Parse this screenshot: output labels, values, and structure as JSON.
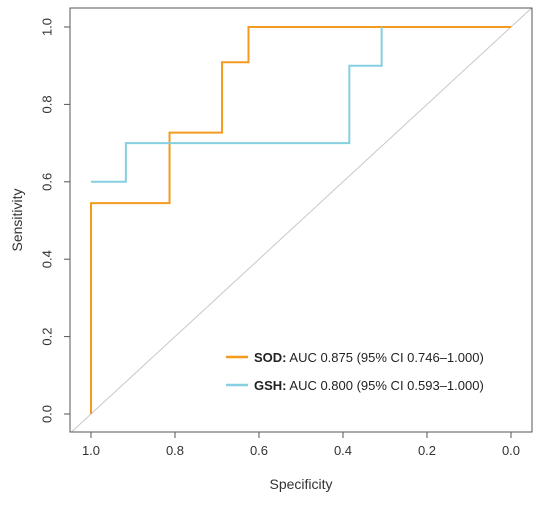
{
  "chart_data": {
    "type": "line",
    "title": "",
    "xlabel": "Specificity",
    "ylabel": "Sensitivity",
    "x_reversed": true,
    "xlim": [
      1.05,
      -0.05
    ],
    "ylim": [
      0.0,
      1.0
    ],
    "x_ticks": [
      1.0,
      0.8,
      0.6,
      0.4,
      0.2,
      0.0
    ],
    "x_tick_labels": [
      "1.0",
      "0.8",
      "0.6",
      "0.4",
      "0.2",
      "0.0"
    ],
    "y_ticks": [
      0.0,
      0.2,
      0.4,
      0.6,
      0.8,
      1.0
    ],
    "y_tick_labels": [
      "0.0",
      "0.2",
      "0.4",
      "0.6",
      "0.8",
      "1.0"
    ],
    "grid": false,
    "legend_position": "bottom-right",
    "diagonal": {
      "from": [
        1.0,
        0.0
      ],
      "to": [
        0.0,
        1.0
      ],
      "color": "#c8c8c8"
    },
    "series": [
      {
        "name": "SOD",
        "legend_label": "SOD:",
        "legend_detail": " AUC 0.875 (95% CI 0.746–1.000)",
        "color": "#f39b1f",
        "points": [
          {
            "x": 1.0,
            "y": 0.0
          },
          {
            "x": 1.0,
            "y": 0.545
          },
          {
            "x": 0.813,
            "y": 0.545
          },
          {
            "x": 0.813,
            "y": 0.727
          },
          {
            "x": 0.688,
            "y": 0.727
          },
          {
            "x": 0.688,
            "y": 0.909
          },
          {
            "x": 0.625,
            "y": 0.909
          },
          {
            "x": 0.625,
            "y": 1.0
          },
          {
            "x": 0.0,
            "y": 1.0
          }
        ]
      },
      {
        "name": "GSH",
        "legend_label": "GSH:",
        "legend_detail": " AUC 0.800 (95% CI 0.593–1.000)",
        "color": "#85cfe0",
        "points": [
          {
            "x": 1.0,
            "y": 0.6
          },
          {
            "x": 0.917,
            "y": 0.6
          },
          {
            "x": 0.917,
            "y": 0.7
          },
          {
            "x": 0.385,
            "y": 0.7
          },
          {
            "x": 0.385,
            "y": 0.9
          },
          {
            "x": 0.308,
            "y": 0.9
          },
          {
            "x": 0.308,
            "y": 1.0
          }
        ]
      }
    ]
  }
}
